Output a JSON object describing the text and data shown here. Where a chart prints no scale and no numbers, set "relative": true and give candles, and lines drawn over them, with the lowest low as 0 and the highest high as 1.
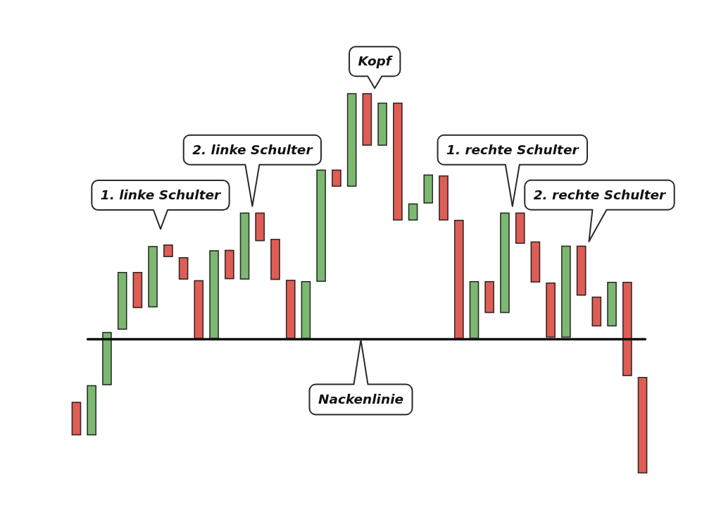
{
  "chart_data": {
    "type": "candlestick",
    "relative": true,
    "categories": [
      null,
      null,
      null,
      null,
      null,
      null,
      null,
      null,
      null,
      null,
      null,
      null,
      null,
      null,
      null,
      null,
      null,
      null,
      null,
      null,
      null,
      null,
      null,
      null,
      null,
      null,
      null,
      null,
      null,
      null,
      null,
      null,
      null,
      null,
      null,
      null,
      null,
      null
    ],
    "ohlc": [
      [
        0.188,
        0.188,
        0.1,
        0.1
      ],
      [
        0.1,
        0.232,
        0.1,
        0.232
      ],
      [
        0.232,
        0.372,
        0.232,
        0.372
      ],
      [
        0.378,
        0.53,
        0.378,
        0.53
      ],
      [
        0.53,
        0.53,
        0.435,
        0.435
      ],
      [
        0.437,
        0.598,
        0.437,
        0.598
      ],
      [
        0.602,
        0.602,
        0.569,
        0.569
      ],
      [
        0.569,
        0.569,
        0.51,
        0.51
      ],
      [
        0.508,
        0.508,
        0.354,
        0.354
      ],
      [
        0.354,
        0.587,
        0.354,
        0.587
      ],
      [
        0.588,
        0.588,
        0.511,
        0.511
      ],
      [
        0.51,
        0.686,
        0.51,
        0.686
      ],
      [
        0.686,
        0.686,
        0.611,
        0.611
      ],
      [
        0.617,
        0.617,
        0.509,
        0.509
      ],
      [
        0.509,
        0.509,
        0.354,
        0.354
      ],
      [
        0.354,
        0.506,
        0.354,
        0.506
      ],
      [
        0.504,
        0.799,
        0.504,
        0.799
      ],
      [
        0.799,
        0.799,
        0.754,
        0.754
      ],
      [
        0.754,
        1,
        0.754,
        1
      ],
      [
        1,
        1,
        0.862,
        0.862
      ],
      [
        0.862,
        0.975,
        0.862,
        0.975
      ],
      [
        0.975,
        0.975,
        0.665,
        0.665
      ],
      [
        0.665,
        0.71,
        0.665,
        0.71
      ],
      [
        0.71,
        0.786,
        0.71,
        0.786
      ],
      [
        0.784,
        0.784,
        0.665,
        0.665
      ],
      [
        0.667,
        0.667,
        0.354,
        0.354
      ],
      [
        0.354,
        0.506,
        0.354,
        0.506
      ],
      [
        0.506,
        0.506,
        0.422,
        0.422
      ],
      [
        0.422,
        0.686,
        0.422,
        0.686
      ],
      [
        0.686,
        0.686,
        0.604,
        0.604
      ],
      [
        0.61,
        0.61,
        0.502,
        0.502
      ],
      [
        0.502,
        0.502,
        0.357,
        0.357
      ],
      [
        0.357,
        0.599,
        0.357,
        0.599
      ],
      [
        0.599,
        0.599,
        0.468,
        0.468
      ],
      [
        0.465,
        0.465,
        0.387,
        0.387
      ],
      [
        0.387,
        0.504,
        0.387,
        0.504
      ],
      [
        0.504,
        0.504,
        0.256,
        0.256
      ],
      [
        0.254,
        0.254,
        0,
        0
      ]
    ],
    "colors": [
      "#e05d54",
      "#7cb970",
      "#7cb970",
      "#7cb970",
      "#e05d54",
      "#7cb970",
      "#e05d54",
      "#e05d54",
      "#e05d54",
      "#7cb970",
      "#e05d54",
      "#7cb970",
      "#e05d54",
      "#e05d54",
      "#e05d54",
      "#7cb970",
      "#7cb970",
      "#e05d54",
      "#7cb970",
      "#e05d54",
      "#7cb970",
      "#e05d54",
      "#7cb970",
      "#7cb970",
      "#e05d54",
      "#e05d54",
      "#7cb970",
      "#e05d54",
      "#7cb970",
      "#e05d54",
      "#e05d54",
      "#e05d54",
      "#7cb970",
      "#e05d54",
      "#e05d54",
      "#7cb970",
      "#e05d54",
      "#e05d54"
    ],
    "ref_lines": [
      {
        "axis": "y",
        "value": 0.353,
        "label": "Nackenlinie",
        "color": "#111111"
      }
    ],
    "annotations": [
      "1. linke Schulter",
      "2. linke Schulter",
      "Kopf",
      "1. rechte Schulter",
      "2. rechte Schulter"
    ]
  }
}
